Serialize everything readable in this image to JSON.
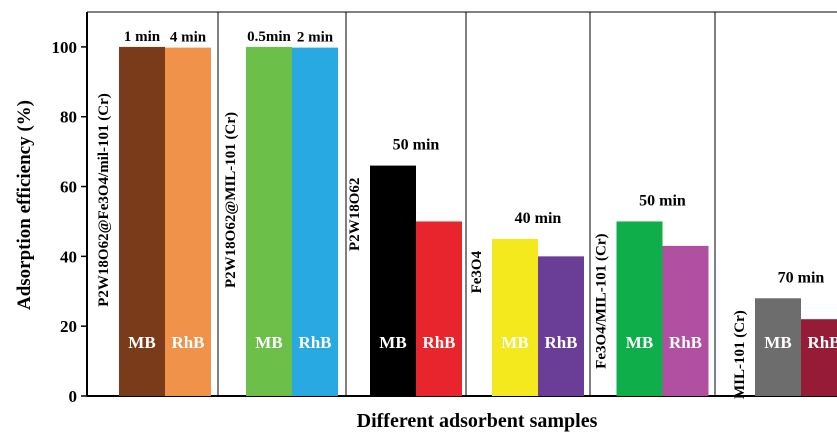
{
  "chart_data": {
    "type": "bar",
    "title": "",
    "xlabel": "Different adsorbent samples",
    "ylabel": "Adsorption efficiency (%)",
    "ylim": [
      0,
      110
    ],
    "yticks": [
      0,
      20,
      40,
      60,
      80,
      100
    ],
    "grid": false,
    "legend": "none",
    "groups": [
      {
        "sample": "P2W18O62@Fe3O4/mil-101 (Cr)",
        "bars": [
          {
            "label": "MB",
            "value": 100,
            "time": "1 min",
            "color": "#7a3b1b"
          },
          {
            "label": "RhB",
            "value": 99.8,
            "time": "4 min",
            "color": "#f0924a"
          }
        ]
      },
      {
        "sample": "P2W18O62@MIL-101 (Cr)",
        "bars": [
          {
            "label": "MB",
            "value": 100,
            "time": "0.5min",
            "color": "#6cc04a"
          },
          {
            "label": "RhB",
            "value": 99.8,
            "time": "2 min",
            "color": "#29a9e1"
          }
        ]
      },
      {
        "sample": "P2W18O62",
        "time": "50 min",
        "bars": [
          {
            "label": "MB",
            "value": 66,
            "color": "#000000"
          },
          {
            "label": "RhB",
            "value": 50,
            "color": "#e8242c"
          }
        ]
      },
      {
        "sample": "Fe3O4",
        "time": "40 min",
        "bars": [
          {
            "label": "MB",
            "value": 45,
            "color": "#f3e91c"
          },
          {
            "label": "RhB",
            "value": 40,
            "color": "#6a3d96"
          }
        ]
      },
      {
        "sample": "Fe3O4/MIL-101 (Cr)",
        "time": "50 min",
        "bars": [
          {
            "label": "MB",
            "value": 50,
            "color": "#0fae4b"
          },
          {
            "label": "RhB",
            "value": 43,
            "color": "#b150a1"
          }
        ]
      },
      {
        "sample": "MIL-101 (Cr)",
        "time": "70 min",
        "bars": [
          {
            "label": "MB",
            "value": 28,
            "color": "#6d6d6d"
          },
          {
            "label": "RhB",
            "value": 22,
            "color": "#961b36"
          }
        ]
      }
    ]
  }
}
